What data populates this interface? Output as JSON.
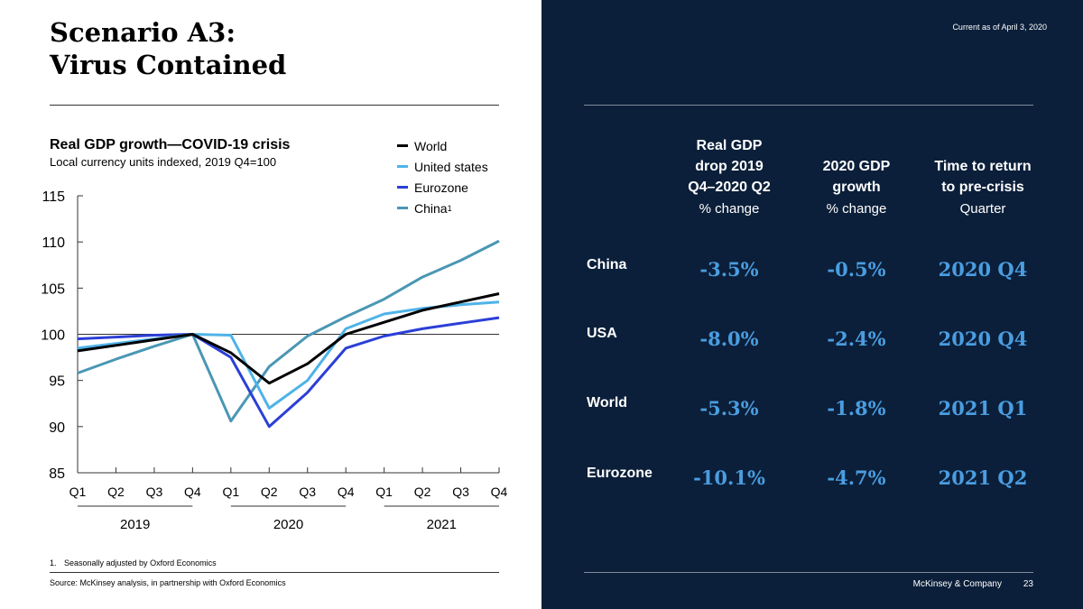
{
  "slide": {
    "title_line1": "Scenario A3:",
    "title_line2": "Virus Contained",
    "date_note": "Current as of April 3, 2020",
    "footnote_num": "1.",
    "footnote_text": "Seasonally adjusted by Oxford Economics",
    "source": "Source: McKinsey analysis, in partnership with Oxford Economics",
    "company": "McKinsey & Company",
    "page": "23"
  },
  "legend": {
    "world": "World",
    "us": "United states",
    "eurozone": "Eurozone",
    "china": "China",
    "china_sup": "1"
  },
  "table": {
    "headers": [
      {
        "line1": "Real GDP",
        "line2": "drop 2019",
        "line3": "Q4–2020 Q2",
        "unit": "% change"
      },
      {
        "line1": "2020 GDP",
        "line2": "growth",
        "line3": "",
        "unit": "% change"
      },
      {
        "line1": "Time to return",
        "line2": "to pre-crisis",
        "line3": "",
        "unit": "Quarter"
      }
    ],
    "rows": [
      {
        "label": "China",
        "drop": "-3.5%",
        "growth": "-0.5%",
        "return": "2020 Q4"
      },
      {
        "label": "USA",
        "drop": "-8.0%",
        "growth": "-2.4%",
        "return": "2020 Q4"
      },
      {
        "label": "World",
        "drop": "-5.3%",
        "growth": "-1.8%",
        "return": "2021 Q1"
      },
      {
        "label": "Eurozone",
        "drop": "-10.1%",
        "growth": "-4.7%",
        "return": "2021 Q2"
      }
    ]
  },
  "chart_data": {
    "type": "line",
    "title": "Real GDP growth—COVID-19 crisis",
    "subtitle": "Local currency units indexed, 2019 Q4=100",
    "categories": [
      "Q1",
      "Q2",
      "Q3",
      "Q4",
      "Q1",
      "Q2",
      "Q3",
      "Q4",
      "Q1",
      "Q2",
      "Q3",
      "Q4"
    ],
    "year_groups": [
      {
        "label": "2019",
        "from": 0,
        "to": 3
      },
      {
        "label": "2020",
        "from": 4,
        "to": 7
      },
      {
        "label": "2021",
        "from": 8,
        "to": 11
      }
    ],
    "ylim": [
      85,
      115
    ],
    "yticks": [
      85,
      90,
      95,
      100,
      105,
      110,
      115
    ],
    "reference_line": 100,
    "series": [
      {
        "name": "World",
        "color": "#000000",
        "values": [
          98.2,
          98.8,
          99.4,
          100.0,
          98.0,
          94.7,
          96.8,
          100.0,
          101.3,
          102.6,
          103.5,
          104.4
        ]
      },
      {
        "name": "United states",
        "color": "#4fb3e8",
        "values": [
          98.5,
          99.0,
          99.5,
          100.0,
          99.9,
          92.0,
          95.0,
          100.6,
          102.2,
          102.8,
          103.2,
          103.5
        ]
      },
      {
        "name": "Eurozone",
        "color": "#2b3fd6",
        "values": [
          99.5,
          99.7,
          99.9,
          100.0,
          97.5,
          90.0,
          93.7,
          98.5,
          99.8,
          100.6,
          101.2,
          101.8
        ]
      },
      {
        "name": "China",
        "color": "#4a97b4",
        "values": [
          95.8,
          97.3,
          98.7,
          100.0,
          90.6,
          96.5,
          99.8,
          101.9,
          103.8,
          106.2,
          108.0,
          110.1
        ]
      }
    ]
  }
}
